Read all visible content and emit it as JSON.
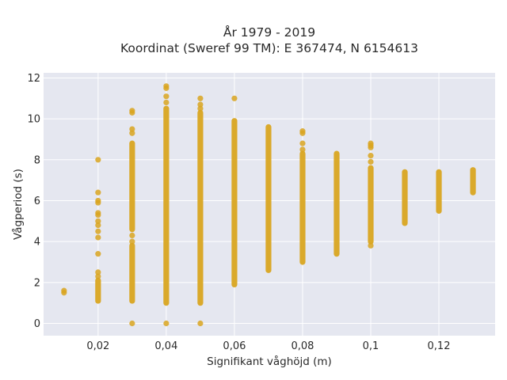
{
  "chart_data": {
    "type": "scatter",
    "title_line1": "År 1979 - 2019",
    "title_line2": "Koordinat (Sweref 99 TM): E 367474, N 6154613",
    "xlabel": "Signifikant våghöjd (m)",
    "ylabel": "Vågperiod (s)",
    "xlim": [
      0.004,
      0.1365
    ],
    "ylim": [
      -0.6,
      12.25
    ],
    "xticks": [
      0.02,
      0.04,
      0.06,
      0.08,
      0.1,
      0.12
    ],
    "xtick_labels": [
      "0,02",
      "0,04",
      "0,06",
      "0,08",
      "0,1",
      "0,12"
    ],
    "yticks": [
      0,
      2,
      4,
      6,
      8,
      10,
      12
    ],
    "ytick_labels": [
      "0",
      "2",
      "4",
      "6",
      "8",
      "10",
      "12"
    ],
    "grid": true,
    "plot_background": "#e5e7f0",
    "grid_color": "#ffffff",
    "marker_color": "#d9a520",
    "columns": [
      {
        "x": 0.01,
        "dense": [],
        "points": [
          1.5,
          1.6
        ]
      },
      {
        "x": 0.02,
        "dense": [
          [
            1.1,
            2.1
          ]
        ],
        "points": [
          2.3,
          2.5,
          3.4,
          4.2,
          4.5,
          4.8,
          5.0,
          5.3,
          5.4,
          5.9,
          6.0,
          6.4,
          8.0
        ]
      },
      {
        "x": 0.03,
        "dense": [
          [
            1.1,
            3.8
          ],
          [
            4.6,
            8.8
          ]
        ],
        "points": [
          0.0,
          4.0,
          4.3,
          9.3,
          9.5,
          10.3,
          10.4
        ]
      },
      {
        "x": 0.04,
        "dense": [
          [
            1.0,
            10.5
          ]
        ],
        "points": [
          0.0,
          10.8,
          11.1,
          11.5,
          11.6
        ]
      },
      {
        "x": 0.05,
        "dense": [
          [
            1.0,
            10.3
          ]
        ],
        "points": [
          0.0,
          10.5,
          10.7,
          11.0
        ]
      },
      {
        "x": 0.06,
        "dense": [
          [
            1.9,
            9.9
          ]
        ],
        "points": [
          11.0
        ]
      },
      {
        "x": 0.07,
        "dense": [
          [
            2.6,
            9.6
          ]
        ],
        "points": []
      },
      {
        "x": 0.08,
        "dense": [
          [
            3.0,
            8.3
          ]
        ],
        "points": [
          8.5,
          8.8,
          9.3,
          9.4
        ]
      },
      {
        "x": 0.09,
        "dense": [
          [
            3.4,
            8.3
          ]
        ],
        "points": []
      },
      {
        "x": 0.1,
        "dense": [
          [
            4.0,
            7.6
          ]
        ],
        "points": [
          3.8,
          7.9,
          8.2,
          8.6,
          8.7,
          8.8
        ]
      },
      {
        "x": 0.11,
        "dense": [
          [
            4.9,
            7.4
          ]
        ],
        "points": []
      },
      {
        "x": 0.12,
        "dense": [
          [
            5.5,
            7.4
          ]
        ],
        "points": []
      },
      {
        "x": 0.13,
        "dense": [
          [
            6.4,
            7.5
          ]
        ],
        "points": []
      }
    ]
  }
}
